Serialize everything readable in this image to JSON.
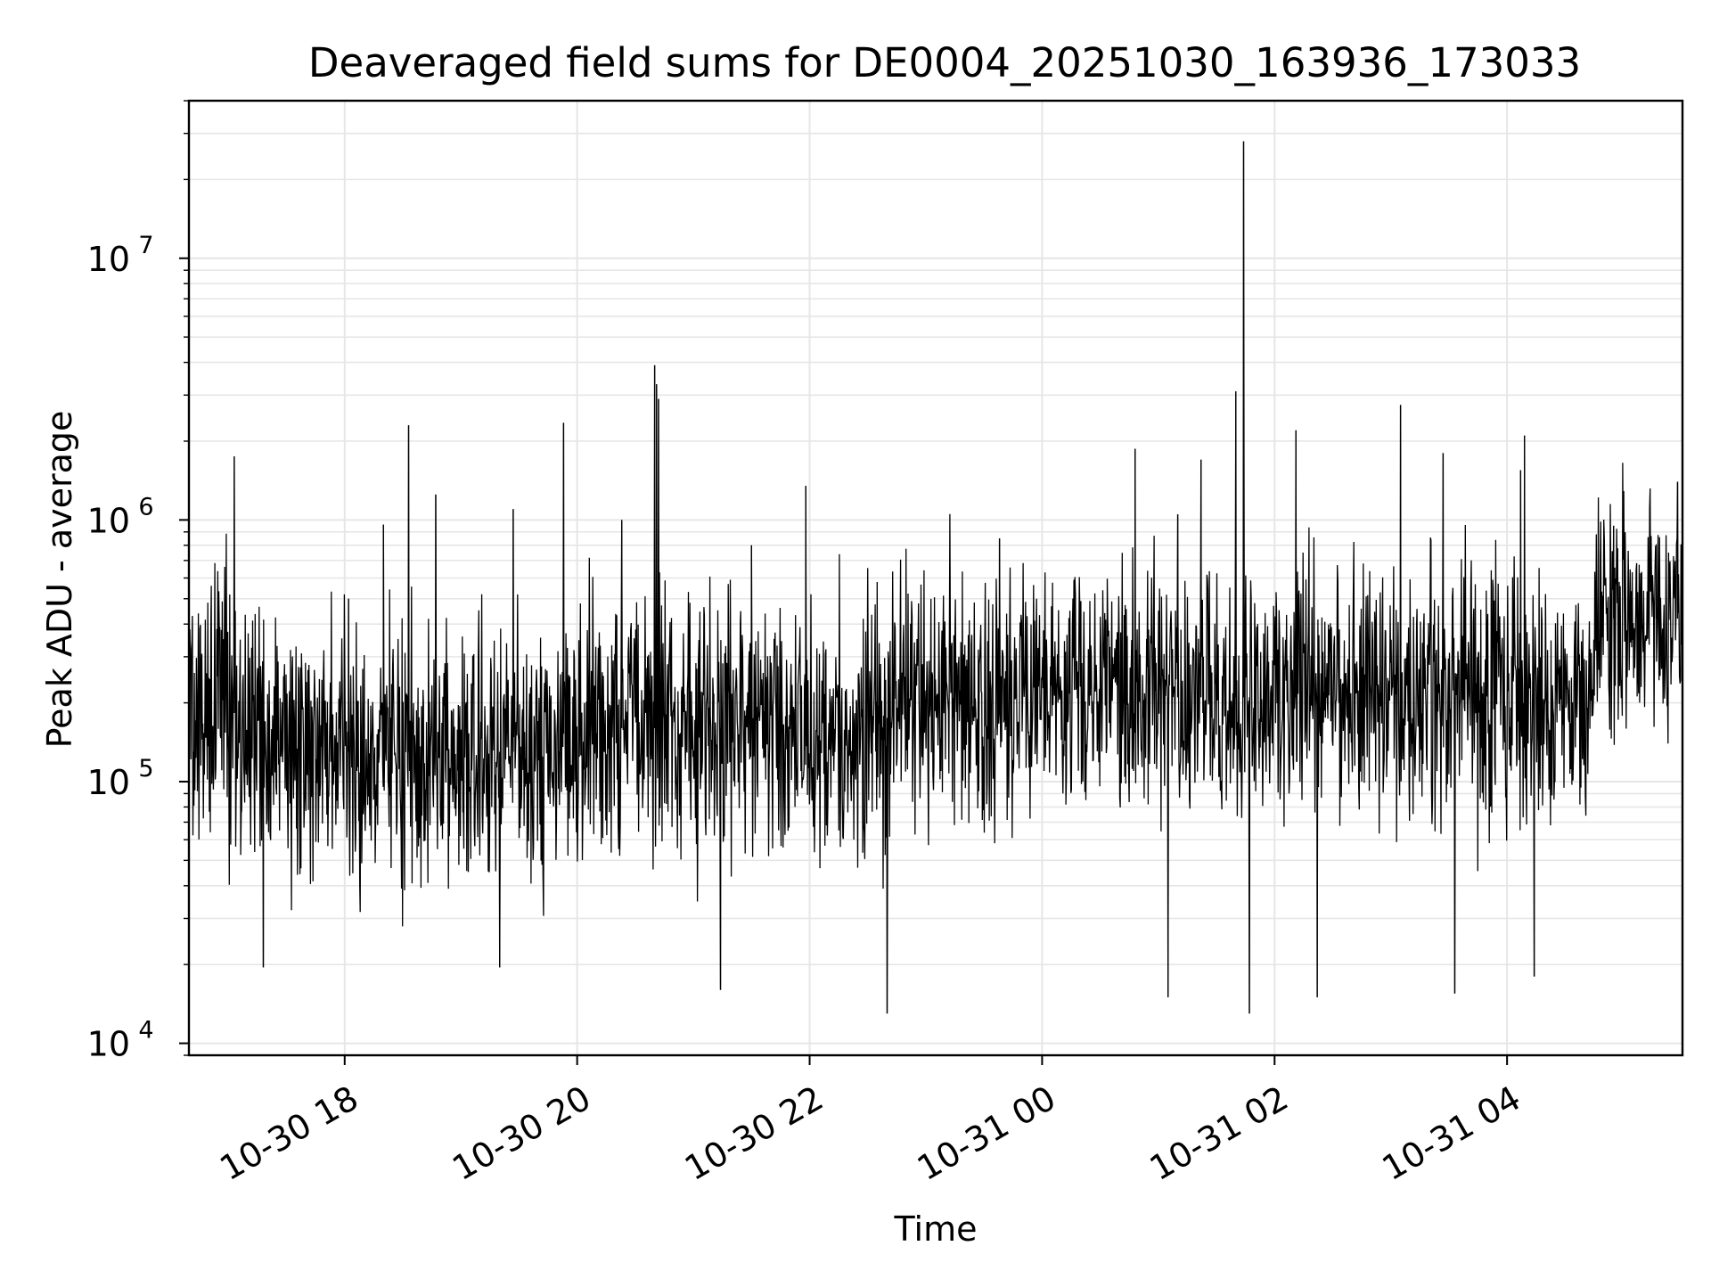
{
  "chart_data": {
    "type": "line",
    "title": "Deaveraged field sums for DE0004_20251030_163936_173033",
    "xlabel": "Time",
    "ylabel": "Peak ADU - average",
    "yscale": "log",
    "ylim": [
      9000,
      40000000
    ],
    "xlim": [
      "2025-10-30 16:39:36",
      "2025-10-31 05:30:33"
    ],
    "x_ticks": [
      "10-30 18",
      "10-30 20",
      "10-30 22",
      "10-31 00",
      "10-31 02",
      "10-31 04"
    ],
    "y_ticks": [
      {
        "base": "10",
        "exp": "4"
      },
      {
        "base": "10",
        "exp": "5"
      },
      {
        "base": "10",
        "exp": "6"
      },
      {
        "base": "10",
        "exp": "7"
      }
    ],
    "grid": true,
    "line_color": "#000000",
    "grid_color": "#e6e6e6",
    "segments": [
      {
        "start": "2025-10-30 16:39:36",
        "end": "2025-10-30 17:30:00",
        "median": 190000
      },
      {
        "start": "2025-10-30 17:30:00",
        "end": "2025-10-30 20:00:00",
        "median": 130000
      },
      {
        "start": "2025-10-30 20:00:00",
        "end": "2025-10-30 23:00:00",
        "median": 160000
      },
      {
        "start": "2025-10-30 23:00:00",
        "end": "2025-10-31 04:45:00",
        "median": 210000
      },
      {
        "start": "2025-10-31 04:45:00",
        "end": "2025-10-31 05:30:33",
        "median": 420000
      }
    ],
    "peaks": [
      {
        "x": "2025-10-30 17:03",
        "y": 1750000
      },
      {
        "x": "2025-10-30 18:02",
        "y": 500000
      },
      {
        "x": "2025-10-30 18:20",
        "y": 960000
      },
      {
        "x": "2025-10-30 18:33",
        "y": 2300000
      },
      {
        "x": "2025-10-30 18:47",
        "y": 1250000
      },
      {
        "x": "2025-10-30 19:27",
        "y": 1100000
      },
      {
        "x": "2025-10-30 19:53",
        "y": 2350000
      },
      {
        "x": "2025-10-30 20:23",
        "y": 1000000
      },
      {
        "x": "2025-10-30 20:40",
        "y": 3900000
      },
      {
        "x": "2025-10-30 20:41",
        "y": 3300000
      },
      {
        "x": "2025-10-30 20:42",
        "y": 2900000
      },
      {
        "x": "2025-10-30 21:30",
        "y": 800000
      },
      {
        "x": "2025-10-30 21:58",
        "y": 1350000
      },
      {
        "x": "2025-10-30 23:38",
        "y": 850000
      },
      {
        "x": "2025-10-31 00:48",
        "y": 1870000
      },
      {
        "x": "2025-10-31 01:10",
        "y": 1050000
      },
      {
        "x": "2025-10-31 01:22",
        "y": 1700000
      },
      {
        "x": "2025-10-31 01:40",
        "y": 3100000
      },
      {
        "x": "2025-10-31 01:44",
        "y": 28000000
      },
      {
        "x": "2025-10-31 02:11",
        "y": 2200000
      },
      {
        "x": "2025-10-31 03:05",
        "y": 2750000
      },
      {
        "x": "2025-10-31 03:27",
        "y": 1800000
      },
      {
        "x": "2025-10-31 04:07",
        "y": 1550000
      },
      {
        "x": "2025-10-31 04:09",
        "y": 2100000
      },
      {
        "x": "2025-10-31 04:55",
        "y": 950000
      },
      {
        "x": "2025-10-31 05:17",
        "y": 800000
      },
      {
        "x": "2025-10-31 05:28",
        "y": 1400000
      }
    ],
    "dips": [
      {
        "x": "2025-10-30 17:18",
        "y": 19500
      },
      {
        "x": "2025-10-30 19:20",
        "y": 19500
      },
      {
        "x": "2025-10-30 21:14",
        "y": 16000
      },
      {
        "x": "2025-10-30 22:40",
        "y": 13000
      },
      {
        "x": "2025-10-31 01:05",
        "y": 15000
      },
      {
        "x": "2025-10-31 01:47",
        "y": 13000
      },
      {
        "x": "2025-10-31 02:22",
        "y": 15000
      },
      {
        "x": "2025-10-31 03:33",
        "y": 15500
      },
      {
        "x": "2025-10-31 04:14",
        "y": 18000
      }
    ]
  }
}
